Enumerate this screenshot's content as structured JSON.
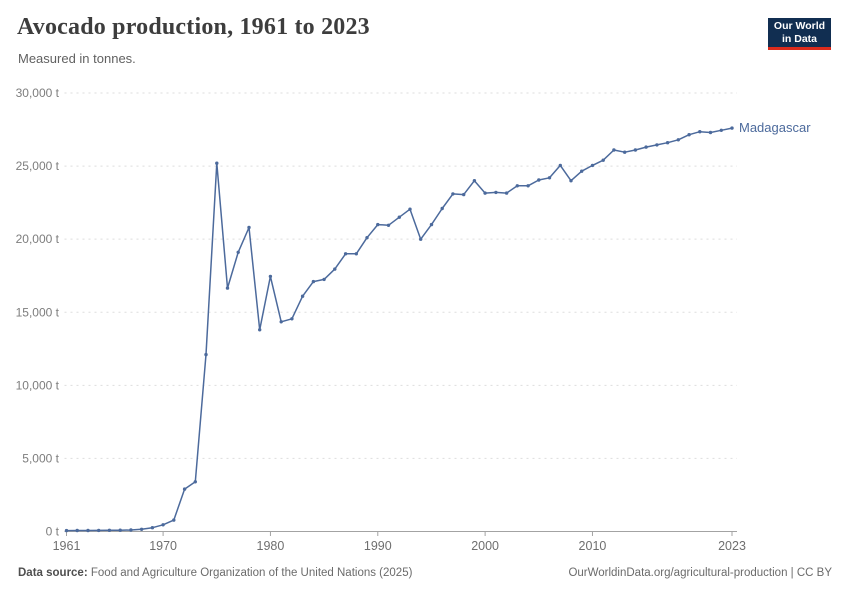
{
  "header": {
    "title": "Avocado production, 1961 to 2023",
    "subtitle": "Measured in tonnes."
  },
  "logo": {
    "line1": "Our World",
    "line2": "in Data"
  },
  "colors": {
    "line": "#4c6a9c",
    "entity_label": "#4c6a9c",
    "grid": "#dddddd",
    "axis_baseline": "#a3a3a3",
    "tick_text": "#7d7d7d",
    "x_tick_text": "#6f6f6f",
    "logo_bg": "#112e51",
    "logo_bar": "#dc2b1c"
  },
  "chart_data": {
    "type": "line",
    "title": "Avocado production, 1961 to 2023",
    "subtitle": "Measured in tonnes.",
    "ylabel": "tonnes",
    "xlabel": "",
    "xlim": [
      1961,
      2023
    ],
    "ylim": [
      0,
      30000
    ],
    "grid": "horizontal-dashed",
    "legend_position": "end-of-line-label",
    "y_ticks": [
      0,
      5000,
      10000,
      15000,
      20000,
      25000,
      30000
    ],
    "y_tick_labels": [
      "0 t",
      "5,000 t",
      "10,000 t",
      "15,000 t",
      "20,000 t",
      "25,000 t",
      "30,000 t"
    ],
    "x_ticks": [
      1961,
      1970,
      1980,
      1990,
      2000,
      2010,
      2023
    ],
    "x_tick_labels": [
      "1961",
      "1970",
      "1980",
      "1990",
      "2000",
      "2010",
      "2023"
    ],
    "series": [
      {
        "name": "Madagascar",
        "color": "#4c6a9c",
        "x": [
          1961,
          1962,
          1963,
          1964,
          1965,
          1966,
          1967,
          1968,
          1969,
          1970,
          1971,
          1972,
          1973,
          1974,
          1975,
          1976,
          1977,
          1978,
          1979,
          1980,
          1981,
          1982,
          1983,
          1984,
          1985,
          1986,
          1987,
          1988,
          1989,
          1990,
          1991,
          1992,
          1993,
          1994,
          1995,
          1996,
          1997,
          1998,
          1999,
          2000,
          2001,
          2002,
          2003,
          2004,
          2005,
          2006,
          2007,
          2008,
          2009,
          2010,
          2011,
          2012,
          2013,
          2014,
          2015,
          2016,
          2017,
          2018,
          2019,
          2020,
          2021,
          2022,
          2023
        ],
        "values": [
          60,
          65,
          70,
          75,
          80,
          90,
          100,
          150,
          260,
          460,
          780,
          2900,
          3400,
          12100,
          25200,
          16650,
          19100,
          20800,
          13800,
          17450,
          14350,
          14550,
          16100,
          17100,
          17250,
          17950,
          19000,
          19000,
          20100,
          21000,
          20950,
          21500,
          22050,
          20000,
          21000,
          22100,
          23100,
          23050,
          24000,
          23150,
          23200,
          23150,
          23650,
          23650,
          24050,
          24200,
          25050,
          24000,
          24650,
          25050,
          25400,
          26100,
          25950,
          26100,
          26300,
          26450,
          26600,
          26800,
          27150,
          27350,
          27300,
          27450,
          27600
        ]
      }
    ]
  },
  "footer": {
    "source_label": "Data source:",
    "source_text": "Food and Agriculture Organization of the United Nations (2025)",
    "credit": "OurWorldinData.org/agricultural-production | CC BY"
  }
}
